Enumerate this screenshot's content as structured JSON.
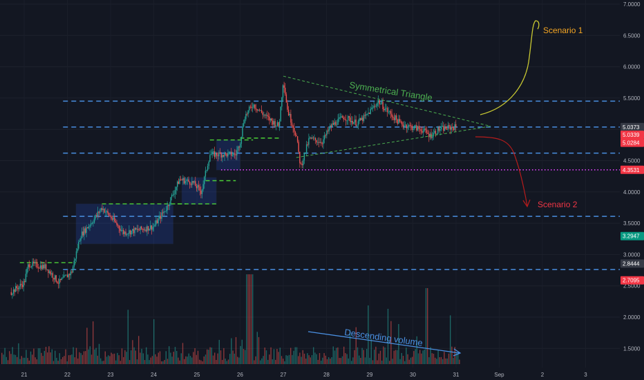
{
  "chart_data": {
    "type": "candlestick",
    "ylim": [
      1.3,
      7.0
    ],
    "y_ticks": [
      "7.0000",
      "6.5000",
      "6.0000",
      "5.5000",
      "5.0000",
      "4.5000",
      "4.0000",
      "3.5000",
      "3.0000",
      "2.5000",
      "2.0000",
      "1.5000"
    ],
    "x_ticks": [
      "21",
      "22",
      "23",
      "24",
      "25",
      "26",
      "27",
      "28",
      "29",
      "30",
      "31",
      "Sep",
      "2",
      "3"
    ],
    "price_badges": [
      {
        "label": "5.0373",
        "value": 5.0373,
        "color": "#363a45"
      },
      {
        "label": "5.0339",
        "value": 5.0339,
        "color": "#f23645"
      },
      {
        "label": "5.0284",
        "value": 5.0284,
        "color": "#f23645"
      },
      {
        "label": "4.3531",
        "value": 4.3531,
        "color": "#f23645"
      },
      {
        "label": "3.2947",
        "value": 3.2947,
        "color": "#089981"
      },
      {
        "label": "2.8444",
        "value": 2.8444,
        "color": "#363a45"
      },
      {
        "label": "2.7095",
        "value": 2.7095,
        "color": "#f23645"
      }
    ],
    "price_path": [
      [
        20.7,
        2.4
      ],
      [
        21.0,
        2.55
      ],
      [
        21.1,
        2.85
      ],
      [
        21.5,
        2.8
      ],
      [
        21.8,
        2.55
      ],
      [
        22.1,
        2.72
      ],
      [
        22.3,
        3.3
      ],
      [
        22.6,
        3.55
      ],
      [
        22.8,
        3.75
      ],
      [
        23.0,
        3.6
      ],
      [
        23.3,
        3.35
      ],
      [
        23.7,
        3.4
      ],
      [
        24.0,
        3.45
      ],
      [
        24.3,
        3.75
      ],
      [
        24.6,
        4.2
      ],
      [
        24.9,
        4.15
      ],
      [
        25.1,
        4.0
      ],
      [
        25.3,
        4.6
      ],
      [
        25.6,
        4.6
      ],
      [
        25.9,
        4.6
      ],
      [
        26.0,
        4.8
      ],
      [
        26.1,
        5.2
      ],
      [
        26.3,
        5.4
      ],
      [
        26.6,
        5.2
      ],
      [
        26.9,
        5.05
      ],
      [
        27.0,
        5.8
      ],
      [
        27.1,
        5.3
      ],
      [
        27.3,
        4.9
      ],
      [
        27.4,
        4.4
      ],
      [
        27.6,
        4.85
      ],
      [
        27.9,
        4.8
      ],
      [
        28.1,
        5.05
      ],
      [
        28.4,
        5.2
      ],
      [
        28.7,
        5.1
      ],
      [
        28.9,
        5.2
      ],
      [
        29.2,
        5.45
      ],
      [
        29.4,
        5.3
      ],
      [
        29.7,
        5.1
      ],
      [
        29.9,
        5.05
      ],
      [
        30.2,
        5.0
      ],
      [
        30.4,
        4.9
      ],
      [
        30.6,
        5.0
      ],
      [
        31.0,
        5.04
      ]
    ],
    "horizontal_levels": [
      {
        "value": 5.45,
        "style": "blue-dashed"
      },
      {
        "value": 5.0373,
        "style": "blue-dashed"
      },
      {
        "value": 4.62,
        "style": "blue-dashed"
      },
      {
        "value": 4.3531,
        "style": "magenta-dotted"
      },
      {
        "value": 3.61,
        "style": "blue-dashed"
      },
      {
        "value": 2.76,
        "style": "blue-dashed"
      }
    ],
    "consolidation_boxes": [
      {
        "x": [
          22.2,
          24.45
        ],
        "y": [
          3.17,
          3.81
        ]
      },
      {
        "x": [
          24.65,
          25.45
        ],
        "y": [
          3.8,
          4.23
        ]
      },
      {
        "x": [
          25.45,
          26.0
        ],
        "y": [
          4.35,
          4.83
        ]
      }
    ],
    "breakout_levels": [
      {
        "x": [
          20.9,
          22.2
        ],
        "y": 2.87
      },
      {
        "x": [
          22.8,
          24.75
        ],
        "y": 3.81
      },
      {
        "x": [
          24.55,
          25.5
        ],
        "y": 3.81
      },
      {
        "x": [
          25.2,
          25.9
        ],
        "y": 4.18
      },
      {
        "x": [
          25.3,
          26.3
        ],
        "y": 4.83
      },
      {
        "x": [
          26.0,
          26.9
        ],
        "y": 4.86
      }
    ],
    "triangle": {
      "label": "Symmetrical Triangle",
      "upper": [
        [
          27.0,
          5.85
        ],
        [
          31.8,
          5.05
        ]
      ],
      "lower": [
        [
          27.3,
          4.55
        ],
        [
          31.8,
          5.05
        ]
      ]
    },
    "scenarios": [
      {
        "label": "Scenario 1",
        "color": "#f5a623"
      },
      {
        "label": "Scenario 2",
        "color": "#f23645"
      }
    ],
    "volume_annotation": "Descending volume"
  },
  "colors": {
    "bg": "#131722",
    "up": "#26a69a",
    "down": "#ef5350",
    "level": "#4a90e2",
    "magenta": "#e040fb",
    "green": "#4caf50",
    "scenario1": "#f5a623",
    "scenario1_path": "#c8c832",
    "scenario2": "#f23645",
    "scenario2_path": "#b71c1c"
  }
}
